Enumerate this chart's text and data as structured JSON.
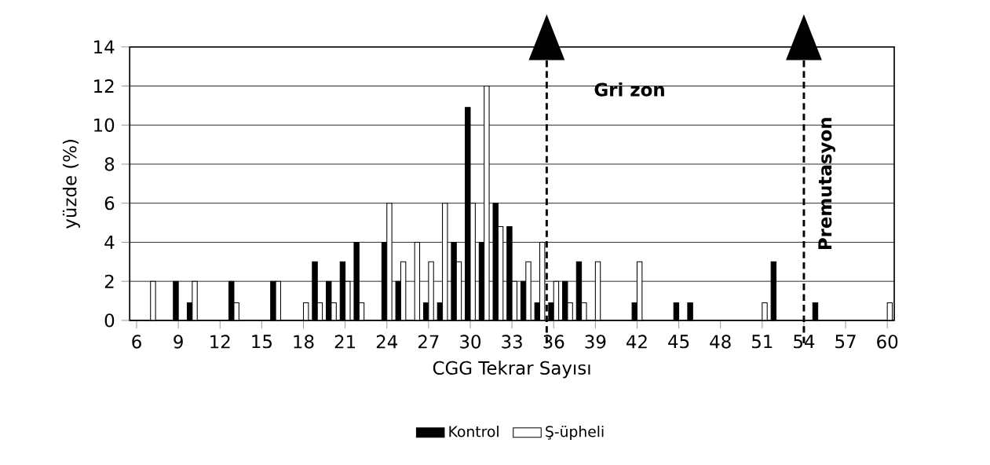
{
  "chart_data": {
    "type": "bar",
    "xlabel": "CGG Tekrar Sayısı",
    "ylabel": "yüzde (%)",
    "x": [
      7,
      9,
      10,
      13,
      16,
      18,
      19,
      20,
      21,
      22,
      24,
      25,
      26,
      27,
      28,
      29,
      30,
      31,
      32,
      33,
      34,
      35,
      36,
      37,
      38,
      39,
      42,
      45,
      46,
      51,
      52,
      55,
      60
    ],
    "series": [
      {
        "name": "Kontrol",
        "color": "#000000",
        "values": [
          null,
          2,
          0.9,
          2,
          2,
          null,
          3,
          2,
          3,
          4,
          4,
          2,
          null,
          0.9,
          0.9,
          4,
          10.9,
          4,
          6,
          4.8,
          2,
          0.9,
          0.9,
          2,
          3,
          null,
          0.9,
          0.9,
          0.9,
          null,
          3,
          0.9,
          null
        ]
      },
      {
        "name": "Ş-üpheli",
        "color": "#ffffff",
        "values": [
          2,
          null,
          2,
          0.9,
          2,
          0.9,
          0.9,
          0.9,
          2,
          0.9,
          6,
          3,
          4,
          3,
          6,
          3,
          6,
          12,
          4.8,
          2,
          3,
          4,
          2,
          0.9,
          0.9,
          3,
          3,
          null,
          null,
          0.9,
          null,
          null,
          0.9
        ]
      }
    ],
    "xlim": [
      5.5,
      60.5
    ],
    "xticks": [
      6,
      9,
      12,
      15,
      18,
      21,
      24,
      27,
      30,
      33,
      36,
      39,
      42,
      45,
      48,
      51,
      54,
      57,
      60
    ],
    "ylim": [
      0,
      14
    ],
    "yticks": [
      0,
      2,
      4,
      6,
      8,
      10,
      12,
      14
    ],
    "grid": "y",
    "legend": "bottom",
    "ref_lines": [
      {
        "axis": "x",
        "value": 35.5,
        "label": "Gri zon",
        "line_style": "dashed"
      },
      {
        "axis": "x",
        "value": 54,
        "label": "Premutasyon",
        "line_style": "dashed"
      }
    ]
  }
}
